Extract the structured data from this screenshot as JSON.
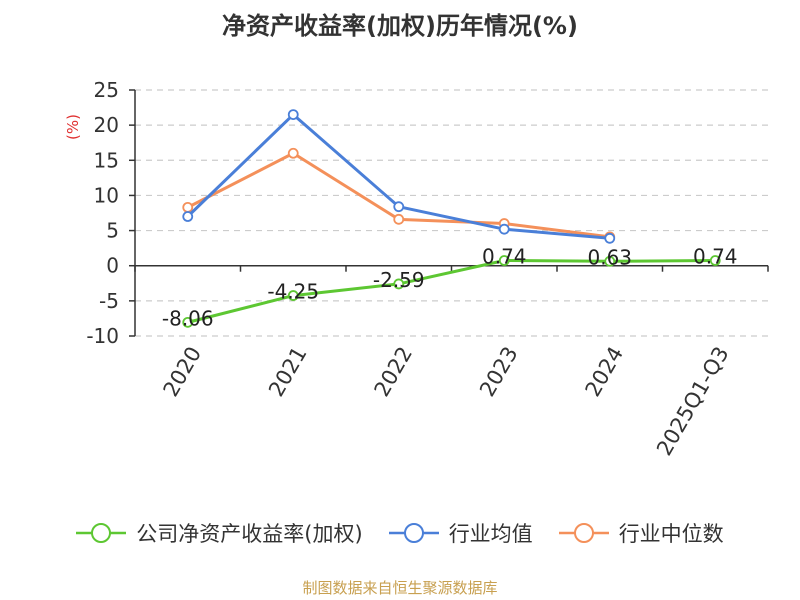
{
  "chart_data": {
    "type": "line",
    "title": "净资产收益率(加权)历年情况(%)",
    "ylabel": "(%)",
    "categories": [
      "2020",
      "2021",
      "2022",
      "2023",
      "2024",
      "2025Q1-Q3"
    ],
    "ylim": [
      -10,
      25
    ],
    "yticks": [
      25,
      20,
      15,
      10,
      5,
      0,
      -5,
      -10
    ],
    "grid": true,
    "legend_position": "bottom",
    "series": [
      {
        "name": "公司净资产收益率(加权)",
        "color": "#5dc732",
        "values": [
          -8.06,
          -4.25,
          -2.59,
          0.74,
          0.63,
          0.74
        ],
        "labels": [
          "-8.06",
          "-4.25",
          "-2.59",
          "0.74",
          "0.63",
          "0.74"
        ]
      },
      {
        "name": "行业均值",
        "color": "#4a7fd8",
        "values": [
          7.0,
          21.5,
          8.4,
          5.2,
          3.9,
          null
        ]
      },
      {
        "name": "行业中位数",
        "color": "#f4905a",
        "values": [
          8.3,
          16.0,
          6.6,
          6.0,
          4.1,
          null
        ]
      }
    ]
  },
  "source": "制图数据来自恒生聚源数据库"
}
